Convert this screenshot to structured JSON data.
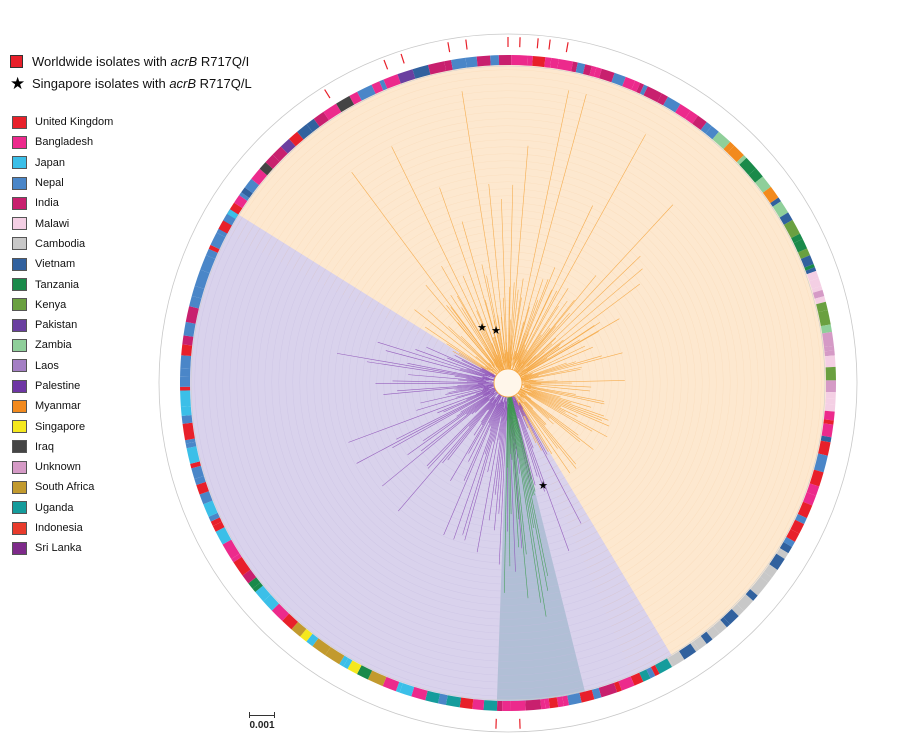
{
  "legend": {
    "red_marker": {
      "label_prefix": "Worldwide isolates with ",
      "gene": "acrB",
      "label_suffix": " R717Q/I",
      "color": "#e8202a"
    },
    "star_marker": {
      "label_prefix": "Singapore isolates with ",
      "gene": "acrB",
      "label_suffix": " R717Q/L"
    }
  },
  "countries": [
    {
      "name": "United Kingdom",
      "color": "#e8202a"
    },
    {
      "name": "Bangladesh",
      "color": "#ec2a8c"
    },
    {
      "name": "Japan",
      "color": "#3bbfe8"
    },
    {
      "name": "Nepal",
      "color": "#4a86c8"
    },
    {
      "name": "India",
      "color": "#c8206e"
    },
    {
      "name": "Malawi",
      "color": "#f4cfe4"
    },
    {
      "name": "Cambodia",
      "color": "#c8c8c8"
    },
    {
      "name": "Vietnam",
      "color": "#31619e"
    },
    {
      "name": "Tanzania",
      "color": "#1a8a4a"
    },
    {
      "name": "Kenya",
      "color": "#6aa040"
    },
    {
      "name": "Pakistan",
      "color": "#6a3fa0"
    },
    {
      "name": "Zambia",
      "color": "#8fcf9a"
    },
    {
      "name": "Laos",
      "color": "#a47fc4"
    },
    {
      "name": "Palestine",
      "color": "#6e36a4"
    },
    {
      "name": "Myanmar",
      "color": "#f28a1e"
    },
    {
      "name": "Singapore",
      "color": "#f5e81e"
    },
    {
      "name": "Iraq",
      "color": "#444444"
    },
    {
      "name": "Unknown",
      "color": "#d59ac6"
    },
    {
      "name": "South Africa",
      "color": "#c29a2e"
    },
    {
      "name": "Uganda",
      "color": "#159c9c"
    },
    {
      "name": "Indonesia",
      "color": "#e83b2c"
    },
    {
      "name": "Sri Lanka",
      "color": "#7e2a8a"
    }
  ],
  "tree": {
    "clade_colors": {
      "orange": "#f5a33a",
      "purple": "#8a4bb5",
      "green": "#3a9a4a"
    },
    "star_count": 3
  },
  "scale_bar": {
    "label": "0.001"
  }
}
